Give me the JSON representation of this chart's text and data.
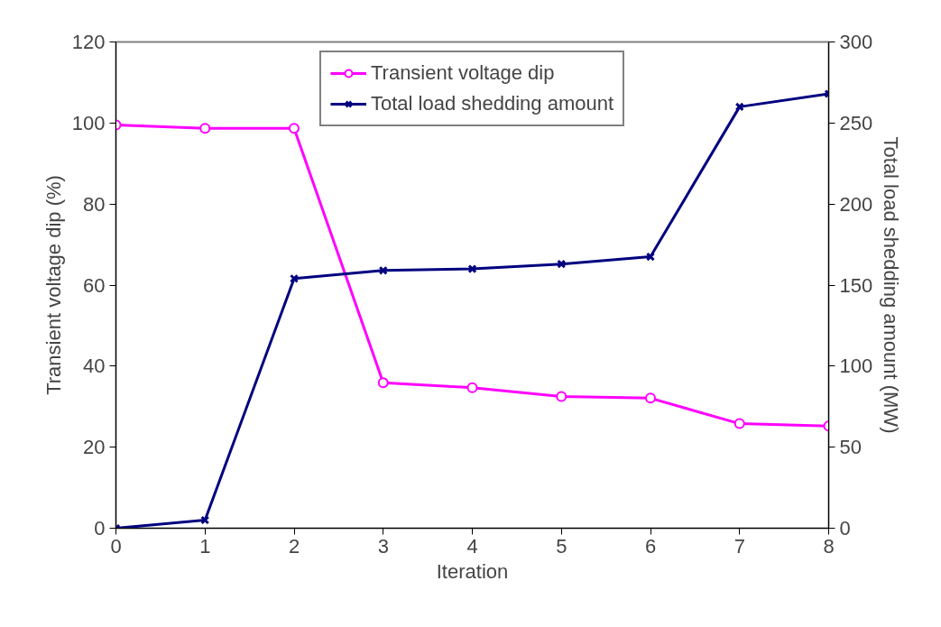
{
  "chart_data": {
    "type": "line",
    "xlabel": "Iteration",
    "ylabel": "Transient voltage dip (%)",
    "y2label": "Total load shedding amount (MW)",
    "x": [
      0,
      1,
      2,
      3,
      4,
      5,
      6,
      7,
      8
    ],
    "series": [
      {
        "name": "Transient voltage dip",
        "color": "#ff00ff",
        "marker": "circle",
        "values": [
          99.5,
          98.7,
          98.7,
          35.9,
          34.7,
          32.5,
          32.1,
          25.8,
          25.2
        ]
      },
      {
        "name": "Total load shedding amount",
        "color": "#000080",
        "marker": "cross",
        "axis": "y2",
        "values": [
          0,
          5,
          154,
          159,
          160,
          163,
          167.5,
          260,
          268
        ]
      }
    ],
    "xlim": [
      0,
      8
    ],
    "xticks": [
      0,
      1,
      2,
      3,
      4,
      5,
      6,
      7,
      8
    ],
    "ylim": [
      0,
      120
    ],
    "yticks": [
      0,
      20,
      40,
      60,
      80,
      100,
      120
    ],
    "y2lim": [
      0,
      300
    ],
    "y2ticks": [
      0,
      50,
      100,
      150,
      200,
      250,
      300
    ],
    "legend": "top",
    "grid": false,
    "line_style": "solid"
  }
}
